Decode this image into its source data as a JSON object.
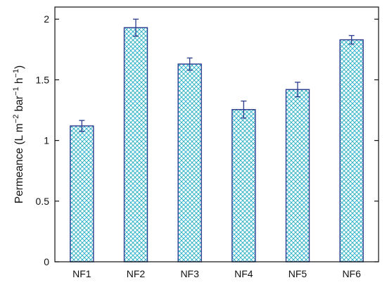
{
  "chart_data": {
    "type": "bar",
    "categories": [
      "NF1",
      "NF2",
      "NF3",
      "NF4",
      "NF5",
      "NF6"
    ],
    "values": [
      1.12,
      1.93,
      1.63,
      1.255,
      1.42,
      1.83
    ],
    "errors": [
      0.045,
      0.07,
      0.05,
      0.07,
      0.06,
      0.035
    ],
    "ylim": [
      0,
      2.1
    ],
    "yticks": [
      0,
      0.5,
      1,
      1.5,
      2
    ],
    "ytick_labels": [
      "0",
      "0.5",
      "1",
      "1.5",
      "2"
    ],
    "title": "",
    "xlabel": "",
    "ylabel": "Permeance (L m−2 bar−1 h−1)",
    "ylabel_parts": {
      "base": "Permeance (L m",
      "exp1": "−2",
      "mid": " bar",
      "exp2": "−1",
      "mid2": " h",
      "exp3": "−1",
      "end": ")"
    },
    "grid": false,
    "legend": "none",
    "colors": {
      "bar_edge": "#2b3c8f",
      "bar_hatch": "#37b6c9",
      "error_bar": "#2b3c8f",
      "axis": "#111111"
    }
  }
}
